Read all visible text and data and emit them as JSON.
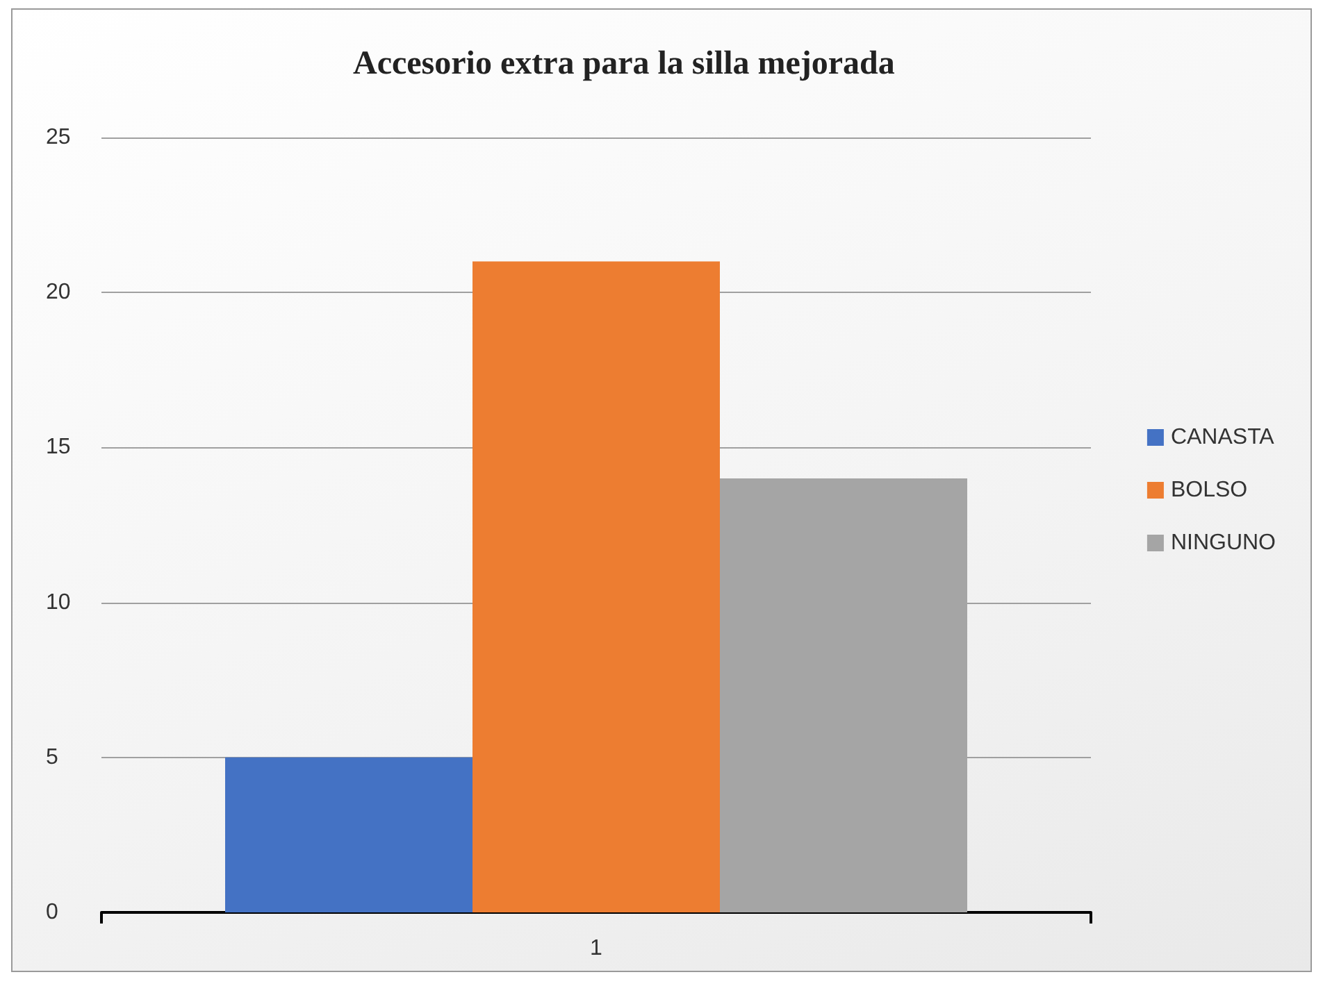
{
  "chart_data": {
    "type": "bar",
    "title": "Accesorio extra para la silla mejorada",
    "categories": [
      "1"
    ],
    "series": [
      {
        "name": "CANASTA",
        "color": "#4472c4",
        "values": [
          5
        ]
      },
      {
        "name": "BOLSO",
        "color": "#ed7d31",
        "values": [
          21
        ]
      },
      {
        "name": "NINGUNO",
        "color": "#a5a5a5",
        "values": [
          14
        ]
      }
    ],
    "ylim": [
      0,
      25
    ],
    "yticks": [
      0,
      5,
      10,
      15,
      20,
      25
    ],
    "grid": "y",
    "legend": "right"
  }
}
